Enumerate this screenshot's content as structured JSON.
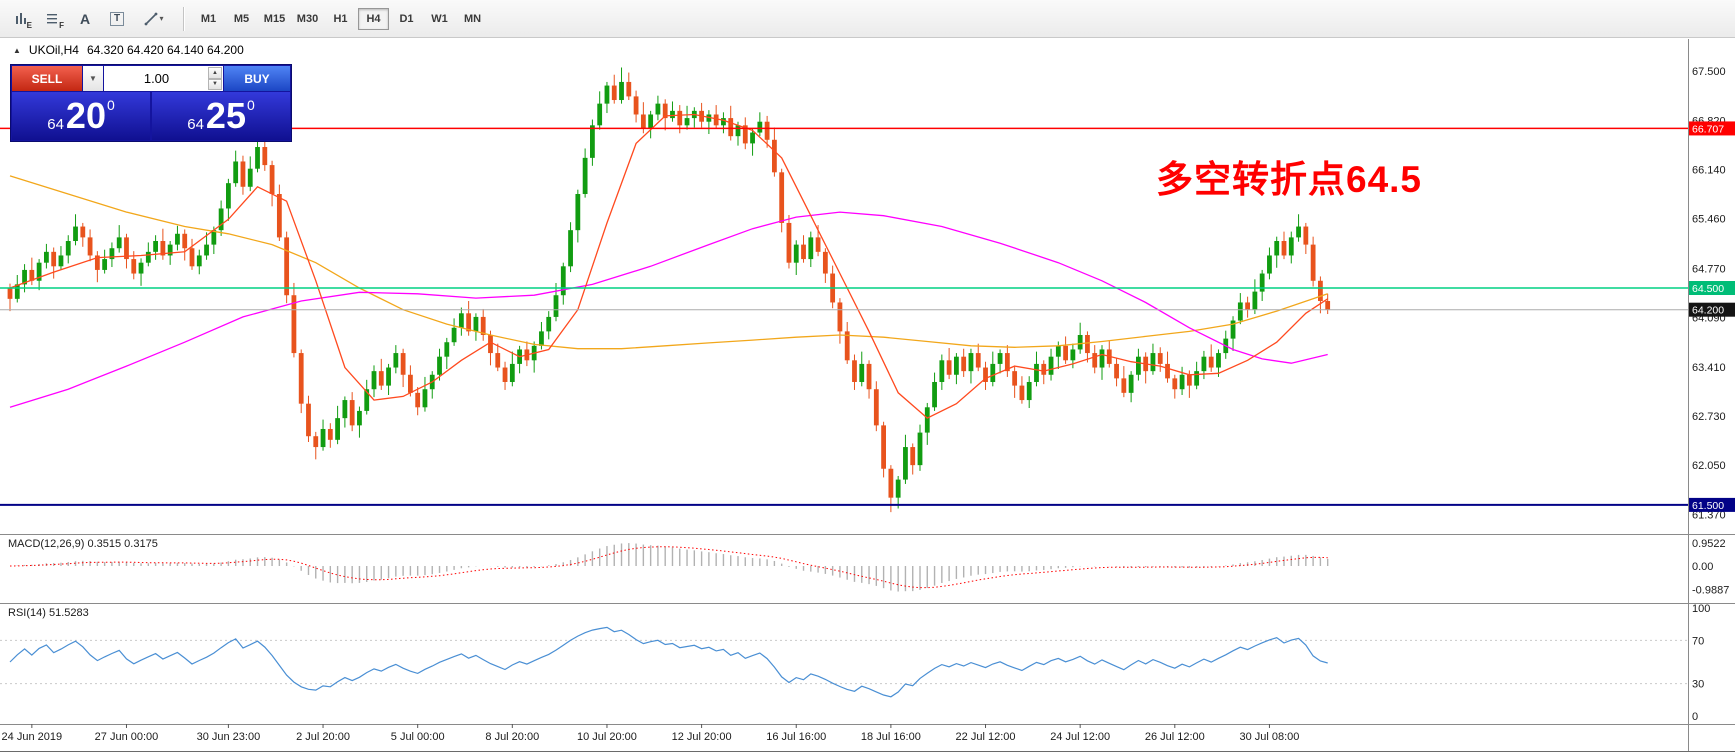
{
  "glyphs": {
    "collapse_triangle": "▲",
    "dropdown_caret": "▼",
    "spinner_up": "▲",
    "spinner_down": "▼",
    "line_tool_caret": "▾",
    "text_tool": "A",
    "text_box_tool": "T",
    "icon_sub_e": "E",
    "icon_sub_f": "F"
  },
  "toolbar": {
    "timeframes": [
      "M1",
      "M5",
      "M15",
      "M30",
      "H1",
      "H4",
      "D1",
      "W1",
      "MN"
    ],
    "active_timeframe": "H4"
  },
  "chart": {
    "symbol_title": "UKOil,H4",
    "ohlc_title": "64.320 64.420 64.140 64.200",
    "annotation_text": "多空转折点64.5",
    "annotation_color": "#ff0000",
    "y_axis_labels": [
      "67.500",
      "66.820",
      "66.140",
      "65.460",
      "64.770",
      "64.090",
      "63.410",
      "62.730",
      "62.050",
      "61.370"
    ],
    "levels": [
      {
        "price": 66.707,
        "label": "66.707",
        "line": "#ff0000",
        "tag": "#ff0000",
        "w": 1.5
      },
      {
        "price": 64.5,
        "label": "64.500",
        "line": "#00d084",
        "tag": "#00bd77",
        "w": 1.5
      },
      {
        "price": 64.2,
        "label": "64.200",
        "line": "#ababab",
        "tag": "#141414",
        "w": 1
      },
      {
        "price": 61.5,
        "label": "61.500",
        "line": "#020287",
        "tag": "#020287",
        "w": 2
      }
    ],
    "x_axis_labels": [
      {
        "text": "24 Jun 2019",
        "i": 3
      },
      {
        "text": "27 Jun 00:00",
        "i": 16
      },
      {
        "text": "30 Jun 23:00",
        "i": 30
      },
      {
        "text": "2 Jul 20:00",
        "i": 43
      },
      {
        "text": "5 Jul 00:00",
        "i": 56
      },
      {
        "text": "8 Jul 20:00",
        "i": 69
      },
      {
        "text": "10 Jul 20:00",
        "i": 82
      },
      {
        "text": "12 Jul 20:00",
        "i": 95
      },
      {
        "text": "16 Jul 16:00",
        "i": 108
      },
      {
        "text": "18 Jul 16:00",
        "i": 121
      },
      {
        "text": "22 Jul 12:00",
        "i": 134
      },
      {
        "text": "24 Jul 12:00",
        "i": 147
      },
      {
        "text": "26 Jul 12:00",
        "i": 160
      },
      {
        "text": "30 Jul 08:00",
        "i": 173
      }
    ]
  },
  "chart_data": {
    "type": "candlestick",
    "symbol": "UKOil",
    "timeframe": "H4",
    "y_range": [
      61.2,
      67.8
    ],
    "first_open": 64.5,
    "closes": [
      64.35,
      64.55,
      64.75,
      64.6,
      64.85,
      65.0,
      64.8,
      64.95,
      65.15,
      65.35,
      65.2,
      64.95,
      64.75,
      64.9,
      65.05,
      65.2,
      64.9,
      64.7,
      64.85,
      65.0,
      65.15,
      64.95,
      65.1,
      65.25,
      65.05,
      64.8,
      64.95,
      65.1,
      65.3,
      65.6,
      65.95,
      66.25,
      65.9,
      66.15,
      66.45,
      66.2,
      65.8,
      65.2,
      64.4,
      63.6,
      62.9,
      62.45,
      62.3,
      62.55,
      62.4,
      62.7,
      62.95,
      62.6,
      62.8,
      63.1,
      63.35,
      63.15,
      63.4,
      63.6,
      63.3,
      63.05,
      62.85,
      63.1,
      63.3,
      63.55,
      63.75,
      63.95,
      64.15,
      63.9,
      64.1,
      63.85,
      63.6,
      63.4,
      63.2,
      63.45,
      63.65,
      63.5,
      63.7,
      63.9,
      64.1,
      64.4,
      64.8,
      65.3,
      65.8,
      66.3,
      66.75,
      67.05,
      67.3,
      67.1,
      67.35,
      67.15,
      66.9,
      66.7,
      66.9,
      67.05,
      66.85,
      66.95,
      66.75,
      66.85,
      66.95,
      66.8,
      66.9,
      66.75,
      66.85,
      66.6,
      66.75,
      66.5,
      66.65,
      66.8,
      66.55,
      66.1,
      65.4,
      64.85,
      65.1,
      64.9,
      65.2,
      65.0,
      64.7,
      64.3,
      63.9,
      63.5,
      63.2,
      63.45,
      63.1,
      62.6,
      62.0,
      61.6,
      61.85,
      62.3,
      62.05,
      62.5,
      62.85,
      63.2,
      63.5,
      63.3,
      63.55,
      63.35,
      63.6,
      63.4,
      63.2,
      63.45,
      63.6,
      63.35,
      63.15,
      62.95,
      63.2,
      63.45,
      63.3,
      63.55,
      63.7,
      63.5,
      63.65,
      63.85,
      63.6,
      63.4,
      63.65,
      63.45,
      63.25,
      63.05,
      63.3,
      63.55,
      63.35,
      63.6,
      63.45,
      63.25,
      63.1,
      63.3,
      63.15,
      63.35,
      63.55,
      63.4,
      63.6,
      63.8,
      64.05,
      64.3,
      64.2,
      64.45,
      64.7,
      64.95,
      65.15,
      64.95,
      65.2,
      65.35,
      65.1,
      64.6,
      64.32,
      64.2
    ],
    "wick_overrides": {
      "31": [
        0.15,
        0.05
      ],
      "34": [
        0.12,
        0.05
      ],
      "83": [
        0.15,
        0.05
      ],
      "84": [
        0.2,
        0.05
      ],
      "120": [
        0.05,
        0.12
      ],
      "121": [
        0.05,
        0.2
      ],
      "122": [
        0.05,
        0.15
      ],
      "181": [
        0.1,
        0.06
      ]
    },
    "up_color": "#119c11",
    "down_color": "#e8531d",
    "moving_averages": [
      {
        "name": "ma-slow-orange",
        "color": "#f2a71b",
        "points": [
          [
            0,
            66.05
          ],
          [
            8,
            65.8
          ],
          [
            16,
            65.55
          ],
          [
            24,
            65.35
          ],
          [
            30,
            65.25
          ],
          [
            36,
            65.1
          ],
          [
            42,
            64.85
          ],
          [
            48,
            64.5
          ],
          [
            54,
            64.2
          ],
          [
            60,
            64.0
          ],
          [
            66,
            63.85
          ],
          [
            72,
            63.72
          ],
          [
            78,
            63.66
          ],
          [
            84,
            63.66
          ],
          [
            90,
            63.7
          ],
          [
            96,
            63.74
          ],
          [
            102,
            63.78
          ],
          [
            108,
            63.82
          ],
          [
            114,
            63.85
          ],
          [
            120,
            63.82
          ],
          [
            126,
            63.76
          ],
          [
            132,
            63.7
          ],
          [
            138,
            63.68
          ],
          [
            144,
            63.7
          ],
          [
            150,
            63.76
          ],
          [
            156,
            63.83
          ],
          [
            162,
            63.9
          ],
          [
            168,
            64.0
          ],
          [
            174,
            64.18
          ],
          [
            181,
            64.42
          ]
        ]
      },
      {
        "name": "ma-long-magenta",
        "color": "#ff00ff",
        "points": [
          [
            0,
            62.85
          ],
          [
            8,
            63.1
          ],
          [
            16,
            63.42
          ],
          [
            24,
            63.75
          ],
          [
            32,
            64.1
          ],
          [
            40,
            64.32
          ],
          [
            48,
            64.44
          ],
          [
            56,
            64.42
          ],
          [
            64,
            64.36
          ],
          [
            72,
            64.4
          ],
          [
            80,
            64.55
          ],
          [
            88,
            64.8
          ],
          [
            96,
            65.1
          ],
          [
            102,
            65.32
          ],
          [
            108,
            65.48
          ],
          [
            114,
            65.55
          ],
          [
            120,
            65.5
          ],
          [
            128,
            65.35
          ],
          [
            136,
            65.12
          ],
          [
            144,
            64.85
          ],
          [
            150,
            64.6
          ],
          [
            156,
            64.3
          ],
          [
            162,
            63.95
          ],
          [
            168,
            63.65
          ],
          [
            172,
            63.52
          ],
          [
            176,
            63.46
          ],
          [
            181,
            63.58
          ]
        ]
      },
      {
        "name": "ma-mid-red",
        "color": "#ff4a1f",
        "points": [
          [
            0,
            64.5
          ],
          [
            6,
            64.72
          ],
          [
            12,
            64.92
          ],
          [
            18,
            64.95
          ],
          [
            24,
            65.0
          ],
          [
            30,
            65.45
          ],
          [
            34,
            65.9
          ],
          [
            38,
            65.7
          ],
          [
            42,
            64.6
          ],
          [
            46,
            63.4
          ],
          [
            50,
            62.95
          ],
          [
            54,
            63.0
          ],
          [
            58,
            63.2
          ],
          [
            62,
            63.5
          ],
          [
            66,
            63.75
          ],
          [
            70,
            63.55
          ],
          [
            74,
            63.65
          ],
          [
            78,
            64.2
          ],
          [
            82,
            65.4
          ],
          [
            86,
            66.5
          ],
          [
            90,
            66.88
          ],
          [
            94,
            66.9
          ],
          [
            98,
            66.82
          ],
          [
            102,
            66.68
          ],
          [
            106,
            66.3
          ],
          [
            110,
            65.5
          ],
          [
            114,
            64.7
          ],
          [
            118,
            63.9
          ],
          [
            122,
            63.05
          ],
          [
            126,
            62.7
          ],
          [
            130,
            62.9
          ],
          [
            134,
            63.25
          ],
          [
            138,
            63.42
          ],
          [
            142,
            63.35
          ],
          [
            146,
            63.45
          ],
          [
            150,
            63.58
          ],
          [
            154,
            63.48
          ],
          [
            158,
            63.42
          ],
          [
            162,
            63.3
          ],
          [
            166,
            63.32
          ],
          [
            170,
            63.5
          ],
          [
            174,
            63.75
          ],
          [
            178,
            64.15
          ],
          [
            181,
            64.35
          ]
        ]
      }
    ],
    "macd": {
      "fast": 12,
      "slow": 26,
      "signal": 9,
      "hist_color": "#b2b2b2",
      "signal_color": "#ff0000"
    },
    "rsi": {
      "period": 14,
      "color": "#4a8fd4",
      "levels": [
        70,
        30
      ]
    }
  },
  "macd_panel": {
    "label": "MACD(12,26,9) 0.3515 0.3175",
    "axis_labels": [
      "0.9522",
      "0.00",
      "-0.9887"
    ]
  },
  "rsi_panel": {
    "label": "RSI(14) 51.5283",
    "axis_labels": [
      "100",
      "70",
      "30",
      "0"
    ]
  },
  "trade_panel": {
    "sell_label": "SELL",
    "buy_label": "BUY",
    "volume": "1.00",
    "bid": {
      "small": "64",
      "big": "20",
      "sup": "0"
    },
    "ask": {
      "small": "64",
      "big": "25",
      "sup": "0"
    }
  }
}
